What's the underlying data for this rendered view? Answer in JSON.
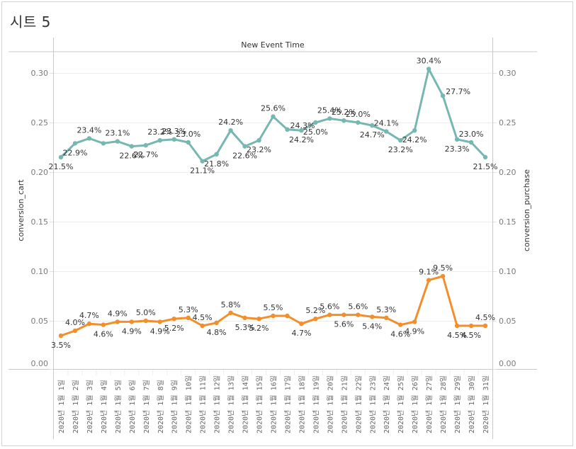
{
  "sheet": {
    "title": "시트 5"
  },
  "chart_data": {
    "type": "line",
    "title": "시트 5",
    "header": "New Event Time",
    "xlabel": "New Event Time",
    "ylabel_left": "conversion_cart",
    "ylabel_right": "conversion_purchase",
    "ylim": [
      0.0,
      0.3
    ],
    "yticks": [
      "0.00",
      "0.05",
      "0.10",
      "0.15",
      "0.20",
      "0.25",
      "0.30"
    ],
    "ytick_values": [
      0.0,
      0.05,
      0.1,
      0.15,
      0.2,
      0.25,
      0.3
    ],
    "grid": true,
    "legend": "none",
    "categories": [
      "2020년 1월 1일",
      "2020년 1월 2일",
      "2020년 1월 3일",
      "2020년 1월 4일",
      "2020년 1월 5일",
      "2020년 1월 6일",
      "2020년 1월 7일",
      "2020년 1월 8일",
      "2020년 1월 9일",
      "2020년 1월 10일",
      "2020년 1월 11일",
      "2020년 1월 12일",
      "2020년 1월 13일",
      "2020년 1월 14일",
      "2020년 1월 15일",
      "2020년 1월 16일",
      "2020년 1월 17일",
      "2020년 1월 18일",
      "2020년 1월 19일",
      "2020년 1월 20일",
      "2020년 1월 21일",
      "2020년 1월 22일",
      "2020년 1월 23일",
      "2020년 1월 24일",
      "2020년 1월 25일",
      "2020년 1월 26일",
      "2020년 1월 27일",
      "2020년 1월 28일",
      "2020년 1월 29일",
      "2020년 1월 30일",
      "2020년 1월 31일"
    ],
    "series": [
      {
        "name": "conversion_cart",
        "axis": "left",
        "color": "#76b7b2",
        "values": [
          0.215,
          0.229,
          0.234,
          0.229,
          0.231,
          0.226,
          0.227,
          0.232,
          0.233,
          0.23,
          0.211,
          0.218,
          0.242,
          0.226,
          0.232,
          0.256,
          0.243,
          0.242,
          0.25,
          0.254,
          0.252,
          0.25,
          0.247,
          0.241,
          0.232,
          0.242,
          0.304,
          0.277,
          0.233,
          0.23,
          0.215
        ],
        "labels": [
          "21.5%",
          "22.9%",
          "23.4%",
          "",
          "23.1%",
          "22.6%",
          "22.7%",
          "23.2%",
          "23.3%",
          "23.0%",
          "21.1%",
          "21.8%",
          "24.2%",
          "22.6%",
          "23.2%",
          "25.6%",
          "24.3%",
          "24.2%",
          "25.0%",
          "25.4%",
          "25.2%",
          "25.0%",
          "24.7%",
          "24.1%",
          "23.2%",
          "24.2%",
          "30.4%",
          "27.7%",
          "23.3%",
          "23.0%",
          "21.5%"
        ],
        "label_pos": [
          "below",
          "below",
          "above",
          "none",
          "above",
          "below",
          "below",
          "above",
          "above",
          "above",
          "below",
          "below",
          "above",
          "below",
          "below",
          "above",
          "right",
          "below",
          "below",
          "above",
          "above",
          "above",
          "below",
          "above",
          "below",
          "below",
          "above",
          "right",
          "below",
          "above",
          "below"
        ]
      },
      {
        "name": "conversion_purchase",
        "axis": "right",
        "color": "#f28e2b",
        "values": [
          0.035,
          0.04,
          0.047,
          0.046,
          0.049,
          0.049,
          0.05,
          0.049,
          0.052,
          0.053,
          0.045,
          0.048,
          0.058,
          0.053,
          0.052,
          0.055,
          0.055,
          0.047,
          0.052,
          0.056,
          0.056,
          0.056,
          0.054,
          0.053,
          0.046,
          0.049,
          0.091,
          0.095,
          0.045,
          0.045,
          0.045
        ],
        "labels": [
          "3.5%",
          "4.0%",
          "4.7%",
          "4.6%",
          "4.9%",
          "4.9%",
          "5.0%",
          "4.9%",
          "5.2%",
          "5.3%",
          "4.5%",
          "4.8%",
          "5.8%",
          "5.3%",
          "5.2%",
          "5.5%",
          "",
          "4.7%",
          "5.2%",
          "5.6%",
          "5.6%",
          "5.6%",
          "5.4%",
          "5.3%",
          "4.6%",
          "4.9%",
          "9.1%",
          "9.5%",
          "4.5%",
          "4.5%",
          "4.5%"
        ],
        "label_pos": [
          "below",
          "above",
          "above",
          "below",
          "above",
          "below",
          "above",
          "below",
          "below",
          "above",
          "above",
          "below",
          "above",
          "below",
          "below",
          "above",
          "none",
          "below",
          "above",
          "above",
          "below",
          "above",
          "below",
          "above",
          "below",
          "below",
          "above",
          "above",
          "below",
          "below",
          "above"
        ]
      }
    ]
  }
}
